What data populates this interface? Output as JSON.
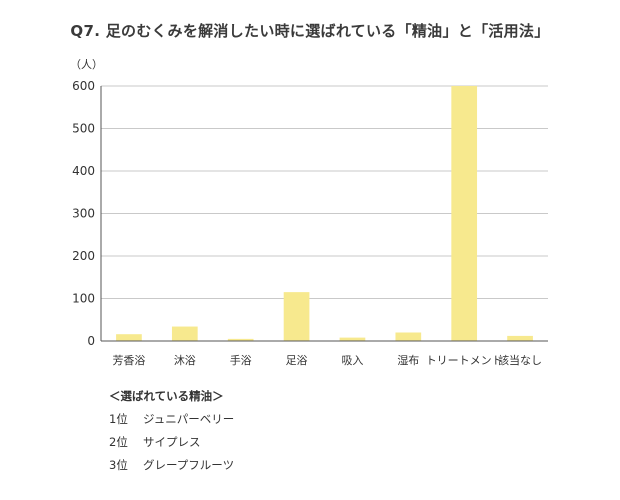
{
  "chart_data": {
    "type": "bar",
    "title": "Q7. 足のむくみを解消したい時に選ばれている「精油」と「活用法」",
    "ylabel": "（人）",
    "xlabel": "",
    "categories": [
      "芳香浴",
      "沐浴",
      "手浴",
      "足浴",
      "吸入",
      "湿布",
      "トリートメント",
      "該当なし"
    ],
    "values": [
      16,
      34,
      5,
      115,
      8,
      20,
      600,
      12
    ],
    "ylim": [
      0,
      600
    ],
    "yticks": [
      "0",
      "100",
      "200",
      "300",
      "400",
      "500",
      "600"
    ],
    "grid": true,
    "bar_color": "#f7e98e",
    "grid_color": "#c9c9c9",
    "axis_color": "#555555"
  },
  "notes": {
    "heading": "＜選ばれている精油＞",
    "items": [
      {
        "rank": "1位",
        "name": "ジュニパーベリー"
      },
      {
        "rank": "2位",
        "name": "サイプレス"
      },
      {
        "rank": "3位",
        "name": "グレープフルーツ"
      }
    ]
  }
}
